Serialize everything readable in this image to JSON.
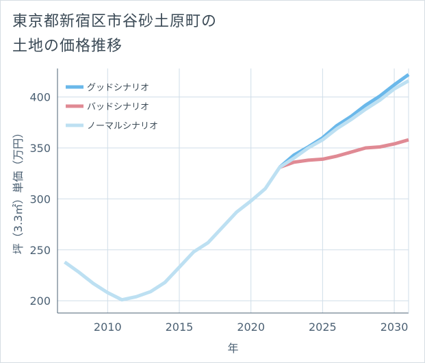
{
  "title": "東京都新宿区市谷砂土原町の\n土地の価格推移",
  "colors": {
    "good": "#6ab8ea",
    "bad": "#e08a94",
    "normal": "#bde0f2",
    "grid": "#cfdde8",
    "axis": "#4b6073"
  },
  "chart_data": {
    "type": "line",
    "xlabel": "年",
    "ylabel": "坪（3.3㎡）単価（万円）",
    "xlim": [
      2006.5,
      2031
    ],
    "ylim": [
      188,
      428
    ],
    "xticks": [
      2010,
      2015,
      2020,
      2025,
      2030
    ],
    "yticks": [
      200,
      250,
      300,
      350,
      400
    ],
    "grid": true,
    "legend_position": "top-left",
    "series": [
      {
        "name": "グッドシナリオ",
        "key": "good",
        "x": [
          2022,
          2023,
          2024,
          2025,
          2026,
          2027,
          2028,
          2029,
          2030,
          2031
        ],
        "y": [
          331,
          343,
          351,
          360,
          372,
          381,
          392,
          401,
          412,
          422
        ]
      },
      {
        "name": "バッドシナリオ",
        "key": "bad",
        "x": [
          2022,
          2023,
          2024,
          2025,
          2026,
          2027,
          2028,
          2029,
          2030,
          2031
        ],
        "y": [
          331,
          336,
          338,
          339,
          342,
          346,
          350,
          351,
          354,
          358
        ]
      },
      {
        "name": "ノーマルシナリオ",
        "key": "normal",
        "x": [
          2007,
          2008,
          2009,
          2010,
          2011,
          2012,
          2013,
          2014,
          2015,
          2016,
          2017,
          2018,
          2019,
          2020,
          2021,
          2022,
          2023,
          2024,
          2025,
          2026,
          2027,
          2028,
          2029,
          2030,
          2031
        ],
        "y": [
          238,
          228,
          217,
          208,
          201,
          204,
          209,
          218,
          233,
          248,
          257,
          272,
          287,
          298,
          310,
          331,
          340,
          350,
          358,
          369,
          378,
          388,
          397,
          408,
          416
        ]
      }
    ]
  }
}
